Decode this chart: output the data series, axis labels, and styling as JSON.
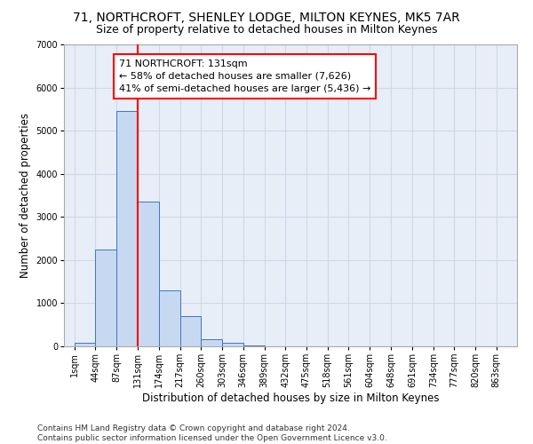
{
  "title_line1": "71, NORTHCROFT, SHENLEY LODGE, MILTON KEYNES, MK5 7AR",
  "title_line2": "Size of property relative to detached houses in Milton Keynes",
  "xlabel": "Distribution of detached houses by size in Milton Keynes",
  "ylabel": "Number of detached properties",
  "footnote": "Contains HM Land Registry data © Crown copyright and database right 2024.\nContains public sector information licensed under the Open Government Licence v3.0.",
  "bar_left_edges": [
    1,
    44,
    87,
    131,
    174,
    217,
    260,
    303,
    346,
    389,
    432,
    475,
    518,
    561,
    604,
    648,
    691,
    734,
    777,
    820
  ],
  "bar_widths": [
    43,
    43,
    43,
    43,
    43,
    43,
    43,
    43,
    43,
    43,
    43,
    43,
    43,
    43,
    43,
    43,
    43,
    43,
    43,
    43
  ],
  "bar_heights": [
    75,
    2250,
    5450,
    3350,
    1300,
    700,
    175,
    90,
    30,
    0,
    0,
    0,
    0,
    0,
    0,
    0,
    0,
    0,
    0,
    0
  ],
  "bar_color": "#c6d9f0",
  "bar_edgecolor": "#4472c4",
  "x_tick_labels": [
    "1sqm",
    "44sqm",
    "87sqm",
    "131sqm",
    "174sqm",
    "217sqm",
    "260sqm",
    "303sqm",
    "346sqm",
    "389sqm",
    "432sqm",
    "475sqm",
    "518sqm",
    "561sqm",
    "604sqm",
    "648sqm",
    "691sqm",
    "734sqm",
    "777sqm",
    "820sqm",
    "863sqm"
  ],
  "x_tick_positions": [
    1,
    44,
    87,
    131,
    174,
    217,
    260,
    303,
    346,
    389,
    432,
    475,
    518,
    561,
    604,
    648,
    691,
    734,
    777,
    820,
    863
  ],
  "ylim": [
    0,
    7000
  ],
  "xlim_min": -20,
  "xlim_max": 905,
  "property_line_x": 131,
  "annotation_text": "71 NORTHCROFT: 131sqm\n← 58% of detached houses are smaller (7,626)\n41% of semi-detached houses are larger (5,436) →",
  "grid_color": "#d0d8e8",
  "bg_color": "#e8eef8",
  "fig_bg_color": "#ffffff",
  "title_fontsize": 10,
  "subtitle_fontsize": 9,
  "label_fontsize": 8.5,
  "tick_fontsize": 7,
  "annotation_fontsize": 8,
  "footnote_fontsize": 6.5
}
